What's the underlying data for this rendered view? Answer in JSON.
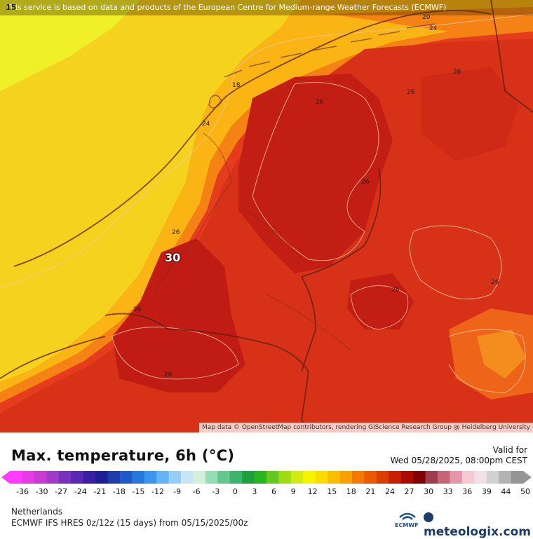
{
  "map": {
    "top_attribution": "This service is based on data and products of the European Centre for Medium-range Weather Forecasts (ECMWF)",
    "corner_value": "15",
    "bottom_attribution": "Map data © OpenStreetMap contributors, rendering GIScience Research Group @ Heidelberg University",
    "contour_labels": [
      "18",
      "20",
      "24",
      "24",
      "26",
      "26",
      "26",
      "26",
      "26",
      "26",
      "26",
      "26",
      "26",
      "26",
      "30"
    ],
    "highlight_value": "30"
  },
  "legend": {
    "title": "Max. temperature, 6h (°C)",
    "valid_label": "Valid for",
    "valid_value": "Wed 05/28/2025, 08:00pm CEST",
    "ticks": [
      "-36",
      "-30",
      "-27",
      "-24",
      "-21",
      "-18",
      "-15",
      "-12",
      "-9",
      "-6",
      "-3",
      "0",
      "3",
      "6",
      "9",
      "12",
      "15",
      "18",
      "21",
      "24",
      "27",
      "30",
      "33",
      "36",
      "39",
      "44",
      "50"
    ],
    "colors": [
      "#ff3cff",
      "#e63ce6",
      "#c83cd2",
      "#a03cc8",
      "#7832be",
      "#5a28b4",
      "#3c1ea0",
      "#1e1e96",
      "#1e3caa",
      "#1e5ac8",
      "#2878dc",
      "#3c96f0",
      "#64b4f5",
      "#96cdf5",
      "#c8e6f5",
      "#d2f0dc",
      "#96dcb4",
      "#64c88c",
      "#3cb46e",
      "#1ea03c",
      "#28b41e",
      "#64c81e",
      "#a0dc14",
      "#d2eb14",
      "#f5f500",
      "#fadc00",
      "#fabe00",
      "#faa000",
      "#f57800",
      "#eb5a00",
      "#dc3c00",
      "#c81e00",
      "#aa0a00",
      "#820000",
      "#a03c50",
      "#c86478",
      "#e696aa",
      "#f5c8d2",
      "#f0e1e6",
      "#d2d2d2",
      "#b4b4b4",
      "#969696"
    ]
  },
  "footer": {
    "region": "Netherlands",
    "model": "ECMWF IFS HRES 0z/12z (15 days)  from  05/15/2025/00z",
    "ecmwf_logo_text": "ECMWF",
    "brand": "meteologix.com"
  }
}
